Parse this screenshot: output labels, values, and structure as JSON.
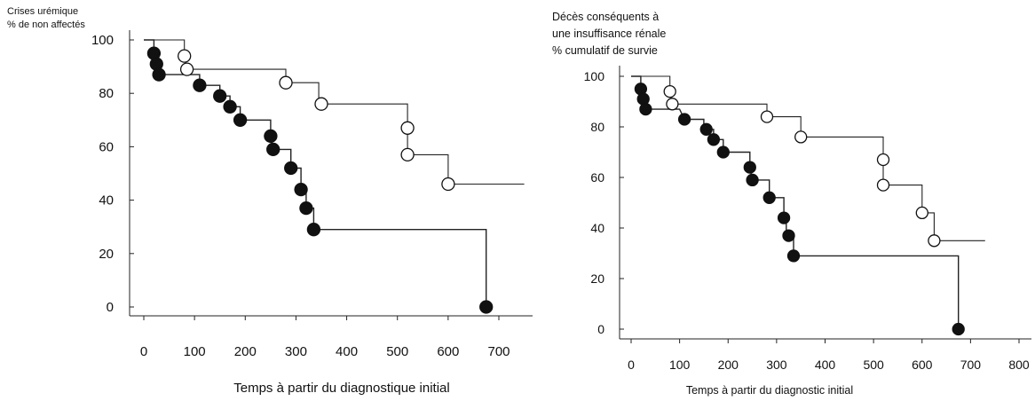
{
  "chart_data": [
    {
      "type": "line",
      "ylabel_lines": [
        "Crises urémique",
        "% de non affectés"
      ],
      "xlabel": "Temps à partir du diagnostique initial",
      "xlim": [
        0,
        700
      ],
      "ylim": [
        0,
        100
      ],
      "x_ticks": [
        "0",
        "100",
        "200",
        "300",
        "400",
        "500",
        "600",
        "700"
      ],
      "y_ticks": [
        "100",
        "80",
        "60",
        "40",
        "20",
        "0"
      ],
      "series": [
        {
          "marker": "filled",
          "step": [
            [
              0,
              100
            ],
            [
              20,
              100
            ],
            [
              20,
              95
            ],
            [
              25,
              91
            ],
            [
              30,
              87
            ],
            [
              110,
              87
            ],
            [
              110,
              83
            ],
            [
              150,
              83
            ],
            [
              150,
              79
            ],
            [
              170,
              79
            ],
            [
              170,
              75
            ],
            [
              190,
              75
            ],
            [
              190,
              70
            ],
            [
              250,
              70
            ],
            [
              250,
              64
            ],
            [
              255,
              59
            ],
            [
              290,
              59
            ],
            [
              290,
              52
            ],
            [
              310,
              52
            ],
            [
              310,
              44
            ],
            [
              320,
              44
            ],
            [
              320,
              37
            ],
            [
              335,
              37
            ],
            [
              335,
              29
            ],
            [
              675,
              29
            ],
            [
              675,
              0
            ]
          ],
          "points": [
            [
              20,
              95
            ],
            [
              25,
              91
            ],
            [
              30,
              87
            ],
            [
              110,
              83
            ],
            [
              150,
              79
            ],
            [
              170,
              75
            ],
            [
              190,
              70
            ],
            [
              250,
              64
            ],
            [
              255,
              59
            ],
            [
              290,
              52
            ],
            [
              310,
              44
            ],
            [
              320,
              37
            ],
            [
              335,
              29
            ],
            [
              675,
              0
            ]
          ]
        },
        {
          "marker": "open",
          "step": [
            [
              0,
              100
            ],
            [
              80,
              100
            ],
            [
              80,
              94
            ],
            [
              85,
              89
            ],
            [
              280,
              89
            ],
            [
              280,
              84
            ],
            [
              345,
              84
            ],
            [
              345,
              76
            ],
            [
              520,
              76
            ],
            [
              520,
              67
            ],
            [
              520,
              57
            ],
            [
              600,
              57
            ],
            [
              600,
              46
            ],
            [
              750,
              46
            ]
          ],
          "points": [
            [
              80,
              94
            ],
            [
              85,
              89
            ],
            [
              280,
              84
            ],
            [
              350,
              76
            ],
            [
              520,
              67
            ],
            [
              520,
              57
            ],
            [
              600,
              46
            ]
          ]
        }
      ]
    },
    {
      "type": "line",
      "ylabel_lines": [
        "Décès conséquents à",
        "une insuffisance rénale",
        "% cumulatif de survie"
      ],
      "xlabel": "Temps à partir du diagnostic initial",
      "xlim": [
        0,
        800
      ],
      "ylim": [
        0,
        100
      ],
      "x_ticks": [
        "0",
        "100",
        "200",
        "300",
        "400",
        "500",
        "600",
        "700",
        "800"
      ],
      "y_ticks": [
        "100",
        "80",
        "60",
        "40",
        "20",
        "0"
      ],
      "series": [
        {
          "marker": "filled",
          "step": [
            [
              0,
              100
            ],
            [
              20,
              100
            ],
            [
              20,
              95
            ],
            [
              25,
              91
            ],
            [
              30,
              87
            ],
            [
              100,
              87
            ],
            [
              110,
              83
            ],
            [
              150,
              83
            ],
            [
              150,
              79
            ],
            [
              170,
              79
            ],
            [
              170,
              75
            ],
            [
              190,
              75
            ],
            [
              190,
              70
            ],
            [
              245,
              70
            ],
            [
              245,
              64
            ],
            [
              250,
              59
            ],
            [
              285,
              59
            ],
            [
              285,
              52
            ],
            [
              315,
              52
            ],
            [
              315,
              44
            ],
            [
              320,
              44
            ],
            [
              320,
              37
            ],
            [
              335,
              37
            ],
            [
              335,
              29
            ],
            [
              675,
              29
            ],
            [
              675,
              0
            ]
          ],
          "points": [
            [
              20,
              95
            ],
            [
              25,
              91
            ],
            [
              30,
              87
            ],
            [
              110,
              83
            ],
            [
              155,
              79
            ],
            [
              170,
              75
            ],
            [
              190,
              70
            ],
            [
              245,
              64
            ],
            [
              250,
              59
            ],
            [
              285,
              52
            ],
            [
              315,
              44
            ],
            [
              325,
              37
            ],
            [
              335,
              29
            ],
            [
              675,
              0
            ]
          ]
        },
        {
          "marker": "open",
          "step": [
            [
              0,
              100
            ],
            [
              80,
              100
            ],
            [
              80,
              94
            ],
            [
              85,
              89
            ],
            [
              280,
              89
            ],
            [
              280,
              84
            ],
            [
              350,
              84
            ],
            [
              350,
              76
            ],
            [
              520,
              76
            ],
            [
              520,
              67
            ],
            [
              520,
              57
            ],
            [
              600,
              57
            ],
            [
              600,
              46
            ],
            [
              625,
              46
            ],
            [
              625,
              35
            ],
            [
              730,
              35
            ]
          ],
          "points": [
            [
              80,
              94
            ],
            [
              85,
              89
            ],
            [
              280,
              84
            ],
            [
              350,
              76
            ],
            [
              520,
              67
            ],
            [
              520,
              57
            ],
            [
              600,
              46
            ],
            [
              625,
              35
            ]
          ]
        }
      ]
    }
  ]
}
